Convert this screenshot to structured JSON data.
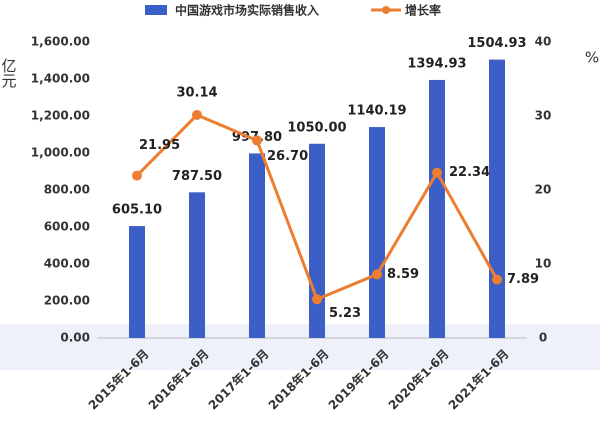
{
  "chart_data": {
    "type": "bar",
    "categories": [
      "2015年1-6月",
      "2016年1-6月",
      "2017年1-6月",
      "2018年1-6月",
      "2019年1-6月",
      "2020年1-6月",
      "2021年1-6月"
    ],
    "y_label": "亿元",
    "y2_label": "%",
    "ylim": [
      0,
      1600
    ],
    "yticks": [
      {
        "value": 0,
        "label": "0.00"
      },
      {
        "value": 200,
        "label": "200.00"
      },
      {
        "value": 400,
        "label": "400.00"
      },
      {
        "value": 600,
        "label": "600.00"
      },
      {
        "value": 800,
        "label": "800.00"
      },
      {
        "value": 1000,
        "label": "1,000.00"
      },
      {
        "value": 1200,
        "label": "1,200.00"
      },
      {
        "value": 1400,
        "label": "1,400.00"
      },
      {
        "value": 1600,
        "label": "1,600.00"
      }
    ],
    "y2lim": [
      0,
      40
    ],
    "y2ticks": [
      0,
      10,
      20,
      30,
      40
    ],
    "series": [
      {
        "name": "中国游戏市场实际销售收入",
        "type": "bar",
        "color": "#3b5fc6",
        "values": [
          605.1,
          787.5,
          997.8,
          1050,
          1140.19,
          1394.93,
          1504.93
        ],
        "value_labels": [
          "605.10",
          "787.50",
          "997.80",
          "1050.00",
          "1140.19",
          "1394.93",
          "1504.93"
        ]
      },
      {
        "name": "增长率",
        "type": "line",
        "axis": "y2",
        "color": "#ed7d31",
        "values": [
          21.95,
          30.14,
          26.7,
          5.23,
          8.59,
          22.34,
          7.89
        ],
        "value_labels": [
          "21.95",
          "30.14",
          "26.70",
          "5.23",
          "8.59",
          "22.34",
          "7.89"
        ]
      }
    ]
  }
}
